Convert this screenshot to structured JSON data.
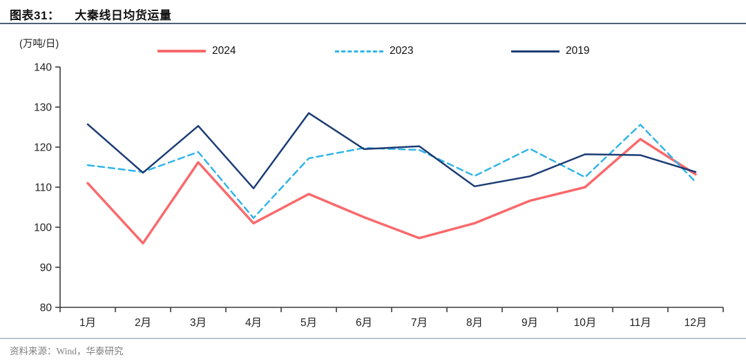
{
  "title": {
    "label": "图表31：",
    "text": "大秦线日均货运量"
  },
  "unit_label": "(万吨/日)",
  "source": "资料来源：Wind，华泰研究",
  "colors": {
    "series_2024": "#f9696c",
    "series_2023": "#2fb4e9",
    "series_2019": "#1b3c74",
    "axis": "#3a3a3a",
    "tick_text": "#222222",
    "title_rule": "#4d6076",
    "footer_rule": "#b9c6d2",
    "footer_text": "#7f7f7f"
  },
  "chart_data": {
    "type": "line",
    "title": "大秦线日均货运量",
    "ylabel": "(万吨/日)",
    "xlabel": "",
    "categories": [
      "1月",
      "2月",
      "3月",
      "4月",
      "5月",
      "6月",
      "7月",
      "8月",
      "9月",
      "10月",
      "11月",
      "12月"
    ],
    "series": [
      {
        "name": "2024",
        "color": "#f9696c",
        "style": "solid",
        "width": 3.5,
        "values": [
          111,
          96,
          116.2,
          101,
          108.3,
          102.5,
          97.3,
          101,
          106.6,
          110,
          122,
          113.2
        ]
      },
      {
        "name": "2023",
        "color": "#2fb4e9",
        "style": "dashed",
        "width": 2.5,
        "values": [
          115.5,
          113.8,
          118.8,
          102.3,
          117.2,
          119.8,
          119.3,
          112.8,
          119.6,
          112.5,
          125.6,
          111.3
        ]
      },
      {
        "name": "2019",
        "color": "#1b3c74",
        "style": "solid",
        "width": 2.5,
        "values": [
          125.7,
          113.6,
          125.3,
          109.7,
          128.5,
          119.5,
          120.2,
          110.2,
          112.7,
          118.2,
          118,
          113.8
        ]
      }
    ],
    "ylim": [
      80,
      140
    ],
    "ytick_step": 10,
    "grid": false,
    "legend_position": "top"
  }
}
